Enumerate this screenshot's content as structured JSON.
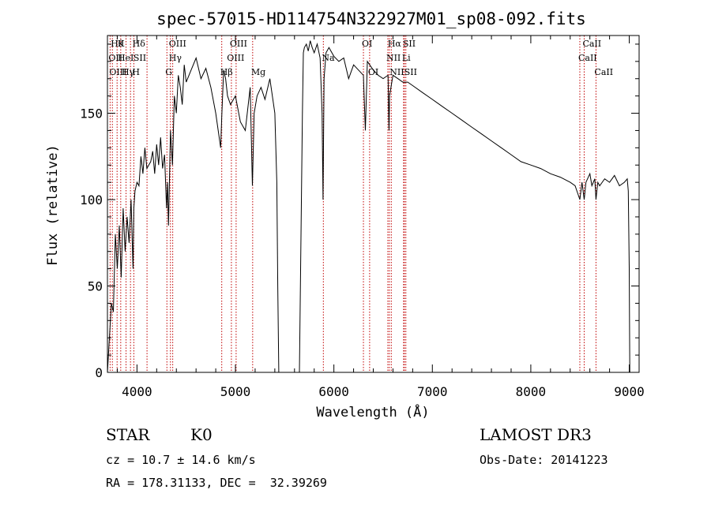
{
  "chart_data": {
    "type": "line",
    "title": "spec-57015-HD114754N322927M01_sp08-092.fits",
    "xlabel": "Wavelength (Å)",
    "ylabel": "Flux (relative)",
    "xlim": [
      3700,
      9100
    ],
    "ylim": [
      0,
      195
    ],
    "xticks": [
      4000,
      5000,
      6000,
      7000,
      8000,
      9000
    ],
    "yticks": [
      0,
      50,
      100,
      150
    ],
    "grid": false,
    "legend": "none",
    "series": [
      {
        "color": "#000000",
        "x": [
          3700,
          3720,
          3740,
          3760,
          3780,
          3800,
          3820,
          3840,
          3860,
          3880,
          3900,
          3920,
          3940,
          3960,
          3968,
          3980,
          4000,
          4020,
          4040,
          4060,
          4080,
          4100,
          4120,
          4140,
          4160,
          4180,
          4200,
          4220,
          4240,
          4260,
          4280,
          4300,
          4310,
          4320,
          4340,
          4360,
          4380,
          4400,
          4420,
          4440,
          4460,
          4480,
          4500,
          4550,
          4600,
          4650,
          4700,
          4750,
          4800,
          4850,
          4861,
          4880,
          4900,
          4920,
          4950,
          5000,
          5050,
          5100,
          5150,
          5172,
          5190,
          5220,
          5260,
          5300,
          5350,
          5400,
          5420,
          5430,
          5440,
          5450,
          5460,
          5500,
          5550,
          5600,
          5650,
          5680,
          5690,
          5700,
          5720,
          5740,
          5760,
          5780,
          5800,
          5830,
          5860,
          5880,
          5890,
          5900,
          5920,
          5950,
          6000,
          6050,
          6100,
          6150,
          6200,
          6250,
          6300,
          6320,
          6340,
          6400,
          6450,
          6500,
          6550,
          6560,
          6565,
          6580,
          6600,
          6650,
          6700,
          6750,
          6800,
          6900,
          7000,
          7100,
          7200,
          7300,
          7400,
          7500,
          7600,
          7700,
          7800,
          7900,
          8000,
          8100,
          8200,
          8300,
          8400,
          8450,
          8498,
          8520,
          8542,
          8560,
          8600,
          8620,
          8650,
          8662,
          8680,
          8700,
          8750,
          8800,
          8850,
          8900,
          8950,
          8980,
          8990,
          9000,
          9005
        ],
        "y": [
          0,
          20,
          40,
          35,
          80,
          60,
          85,
          55,
          95,
          70,
          90,
          75,
          100,
          60,
          95,
          105,
          110,
          108,
          125,
          115,
          130,
          118,
          120,
          122,
          128,
          115,
          132,
          120,
          136,
          118,
          126,
          95,
          110,
          85,
          140,
          120,
          160,
          150,
          172,
          165,
          155,
          178,
          168,
          175,
          182,
          170,
          176,
          165,
          150,
          130,
          148,
          175,
          170,
          160,
          155,
          160,
          145,
          140,
          165,
          108,
          150,
          160,
          165,
          158,
          170,
          150,
          110,
          50,
          0,
          0,
          0,
          0,
          0,
          0,
          0,
          150,
          185,
          188,
          190,
          186,
          192,
          188,
          185,
          190,
          182,
          150,
          100,
          170,
          185,
          188,
          183,
          180,
          182,
          170,
          178,
          175,
          172,
          140,
          180,
          175,
          172,
          170,
          172,
          140,
          160,
          165,
          172,
          170,
          168,
          168,
          166,
          162,
          158,
          154,
          150,
          146,
          142,
          138,
          134,
          130,
          126,
          122,
          120,
          118,
          115,
          113,
          110,
          108,
          100,
          110,
          100,
          110,
          115,
          108,
          112,
          100,
          110,
          108,
          112,
          110,
          114,
          108,
          110,
          112,
          105,
          60,
          0
        ],
        "name": ""
      }
    ],
    "annotation_lines": [
      {
        "x": 3750,
        "label": "Hθ",
        "row": 0
      },
      {
        "x": 3727,
        "label": "OII",
        "row": 1
      },
      {
        "x": 3735,
        "label": "OIII",
        "row": 2
      },
      {
        "x": 3820,
        "label": "K",
        "row": 0
      },
      {
        "x": 3820,
        "label": "HeI",
        "row": 1
      },
      {
        "x": 3860,
        "label": "Hγ",
        "row": 2
      },
      {
        "x": 3970,
        "label": "Hδ",
        "row": 0
      },
      {
        "x": 3980,
        "label": "SII",
        "row": 1
      },
      {
        "x": 3968,
        "label": "H",
        "row": 2
      },
      {
        "x": 4340,
        "label": "OIII",
        "row": 0
      },
      {
        "x": 4340,
        "label": "Hγ",
        "row": 1
      },
      {
        "x": 4304,
        "label": "G",
        "row": 2
      },
      {
        "x": 4959,
        "label": "OIII",
        "row": 0
      },
      {
        "x": 4930,
        "label": "OIII",
        "row": 1
      },
      {
        "x": 4861,
        "label": "Hβ",
        "row": 2
      },
      {
        "x": 5175,
        "label": "Mg",
        "row": 2
      },
      {
        "x": 5893,
        "label": "Na",
        "row": 1
      },
      {
        "x": 6300,
        "label": "OI",
        "row": 0
      },
      {
        "x": 6363,
        "label": "OI",
        "row": 2
      },
      {
        "x": 6563,
        "label": "Hα",
        "row": 0
      },
      {
        "x": 6548,
        "label": "NII",
        "row": 1
      },
      {
        "x": 6583,
        "label": "NII",
        "row": 2
      },
      {
        "x": 6716,
        "label": "SII",
        "row": 0
      },
      {
        "x": 6708,
        "label": "Li",
        "row": 1
      },
      {
        "x": 6731,
        "label": "SII",
        "row": 2
      },
      {
        "x": 8542,
        "label": "CaII",
        "row": 0
      },
      {
        "x": 8498,
        "label": "CaII",
        "row": 1
      },
      {
        "x": 8662,
        "label": "CaII",
        "row": 2
      }
    ],
    "marker_positions": [
      3727,
      3750,
      3798,
      3835,
      3889,
      3934,
      3968,
      4102,
      4304,
      4340,
      4363,
      4861,
      4959,
      5007,
      5175,
      5893,
      6300,
      6363,
      6548,
      6563,
      6583,
      6708,
      6716,
      6731,
      8498,
      8542,
      8662
    ]
  },
  "info": {
    "class_label": "STAR",
    "subclass": "K0",
    "survey": "LAMOST DR3",
    "cz_line": "cz = 10.7 ± 14.6 km/s",
    "obs_date": "Obs-Date: 20141223",
    "coord_line": "RA = 178.31133, DEC =  32.39269"
  }
}
